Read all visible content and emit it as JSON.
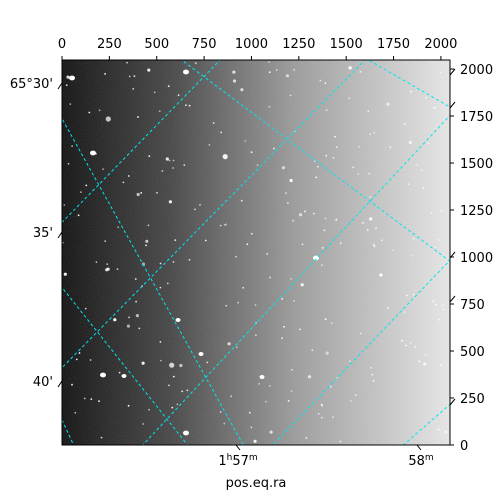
{
  "figure": {
    "x_axis_label": "pos.eq.ra",
    "colors": {
      "grid": "#00e5ee",
      "frame": "#000000",
      "star": "#ffffff",
      "sky_dark": "#0b0b0b",
      "sky_mid": "#7a7a7a",
      "sky_light": "#eaeaea"
    },
    "pixel_axes": {
      "top": {
        "range": [
          0,
          2048
        ],
        "ticks": [
          "0",
          "250",
          "500",
          "750",
          "1000",
          "1250",
          "1500",
          "1750",
          "2000"
        ]
      },
      "right": {
        "range": [
          0,
          2048
        ],
        "ticks": [
          "0",
          "250",
          "500",
          "750",
          "1000",
          "1250",
          "1500",
          "1750",
          "2000"
        ]
      }
    },
    "world_axes": {
      "left_ticks": [
        "65°30'",
        "35'",
        "40'"
      ],
      "bottom_ticks": [
        {
          "label": "1",
          "super1": "h",
          "tail": "57",
          "super2": "m"
        },
        {
          "label": "58",
          "super1": "m",
          "tail": "",
          "super2": ""
        }
      ]
    }
  }
}
